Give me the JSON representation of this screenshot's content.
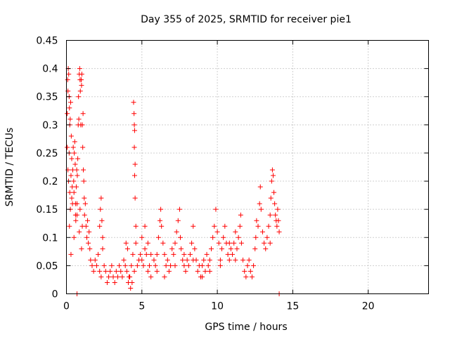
{
  "chart_data": {
    "type": "scatter",
    "title": "Day 355 of 2025, SRMTID for receiver pie1",
    "xlabel": "GPS time / hours",
    "ylabel": "SRMTID / TECUs",
    "xlim": [
      0,
      24
    ],
    "ylim": [
      0,
      0.45
    ],
    "x_ticks": [
      0,
      5,
      10,
      15,
      20
    ],
    "x_tick_labels": [
      "0",
      "5",
      "10",
      "15",
      "20"
    ],
    "y_ticks": [
      0,
      0.05,
      0.1,
      0.15,
      0.2,
      0.25,
      0.3,
      0.35,
      0.4,
      0.45
    ],
    "y_tick_labels": [
      "0",
      "0.05",
      "0.1",
      "0.15",
      "0.2",
      "0.25",
      "0.3",
      "0.35",
      "0.4",
      "0.45"
    ],
    "grid": true,
    "marker": "+",
    "color": "#ff0000",
    "series": [
      {
        "name": "SRMTID",
        "points": [
          [
            0.05,
            0.32
          ],
          [
            0.08,
            0.38
          ],
          [
            0.1,
            0.36
          ],
          [
            0.12,
            0.4
          ],
          [
            0.15,
            0.39
          ],
          [
            0.18,
            0.35
          ],
          [
            0.2,
            0.33
          ],
          [
            0.22,
            0.3
          ],
          [
            0.25,
            0.31
          ],
          [
            0.28,
            0.34
          ],
          [
            0.05,
            0.26
          ],
          [
            0.1,
            0.22
          ],
          [
            0.14,
            0.2
          ],
          [
            0.18,
            0.25
          ],
          [
            0.22,
            0.18
          ],
          [
            0.26,
            0.15
          ],
          [
            0.3,
            0.21
          ],
          [
            0.32,
            0.28
          ],
          [
            0.35,
            0.24
          ],
          [
            0.38,
            0.19
          ],
          [
            0.4,
            0.16
          ],
          [
            0.42,
            0.22
          ],
          [
            0.45,
            0.26
          ],
          [
            0.48,
            0.2
          ],
          [
            0.5,
            0.18
          ],
          [
            0.52,
            0.25
          ],
          [
            0.55,
            0.27
          ],
          [
            0.58,
            0.23
          ],
          [
            0.6,
            0.16
          ],
          [
            0.62,
            0.13
          ],
          [
            0.65,
            0.19
          ],
          [
            0.68,
            0.22
          ],
          [
            0.7,
            0.14
          ],
          [
            0.72,
            0.21
          ],
          [
            0.75,
            0.24
          ],
          [
            0.78,
            0.3
          ],
          [
            0.8,
            0.35
          ],
          [
            0.82,
            0.31
          ],
          [
            0.85,
            0.39
          ],
          [
            0.88,
            0.4
          ],
          [
            0.9,
            0.38
          ],
          [
            0.92,
            0.36
          ],
          [
            0.95,
            0.3
          ],
          [
            0.98,
            0.38
          ],
          [
            1.0,
            0.37
          ],
          [
            1.02,
            0.39
          ],
          [
            1.05,
            0.3
          ],
          [
            1.08,
            0.26
          ],
          [
            1.1,
            0.32
          ],
          [
            1.12,
            0.22
          ],
          [
            1.15,
            0.2
          ],
          [
            1.18,
            0.17
          ],
          [
            1.2,
            0.14
          ],
          [
            1.25,
            0.16
          ],
          [
            1.3,
            0.12
          ],
          [
            1.35,
            0.1
          ],
          [
            1.4,
            0.13
          ],
          [
            1.45,
            0.09
          ],
          [
            1.5,
            0.11
          ],
          [
            1.55,
            0.08
          ],
          [
            0.3,
            0.07
          ],
          [
            0.5,
            0.1
          ],
          [
            0.7,
            0.16
          ],
          [
            0.9,
            0.15
          ],
          [
            1.0,
            0.08
          ],
          [
            1.05,
            0.12
          ],
          [
            0.2,
            0.12
          ],
          [
            0.35,
            0.17
          ],
          [
            0.6,
            0.14
          ],
          [
            0.85,
            0.11
          ],
          [
            1.6,
            0.06
          ],
          [
            1.7,
            0.05
          ],
          [
            1.8,
            0.04
          ],
          [
            1.9,
            0.06
          ],
          [
            2.0,
            0.05
          ],
          [
            2.1,
            0.07
          ],
          [
            2.2,
            0.04
          ],
          [
            2.3,
            0.03
          ],
          [
            2.4,
            0.08
          ],
          [
            2.5,
            0.05
          ],
          [
            2.2,
            0.12
          ],
          [
            2.25,
            0.15
          ],
          [
            2.3,
            0.17
          ],
          [
            2.35,
            0.13
          ],
          [
            2.4,
            0.1
          ],
          [
            2.6,
            0.04
          ],
          [
            2.7,
            0.02
          ],
          [
            2.8,
            0.03
          ],
          [
            2.9,
            0.04
          ],
          [
            3.0,
            0.05
          ],
          [
            3.1,
            0.03
          ],
          [
            3.2,
            0.02
          ],
          [
            3.3,
            0.04
          ],
          [
            3.4,
            0.03
          ],
          [
            3.5,
            0.05
          ],
          [
            3.6,
            0.04
          ],
          [
            3.7,
            0.03
          ],
          [
            3.8,
            0.06
          ],
          [
            3.9,
            0.05
          ],
          [
            4.0,
            0.04
          ],
          [
            4.1,
            0.02
          ],
          [
            4.2,
            0.03
          ],
          [
            4.3,
            0.05
          ],
          [
            4.4,
            0.07
          ],
          [
            4.5,
            0.04
          ],
          [
            3.95,
            0.09
          ],
          [
            4.05,
            0.08
          ],
          [
            4.15,
            0.03
          ],
          [
            4.25,
            0.01
          ],
          [
            4.35,
            0.02
          ],
          [
            4.45,
            0.34
          ],
          [
            4.48,
            0.32
          ],
          [
            4.5,
            0.3
          ],
          [
            4.52,
            0.29
          ],
          [
            4.5,
            0.26
          ],
          [
            4.55,
            0.23
          ],
          [
            4.52,
            0.21
          ],
          [
            4.55,
            0.17
          ],
          [
            4.6,
            0.12
          ],
          [
            4.6,
            0.09
          ],
          [
            4.7,
            0.05
          ],
          [
            4.8,
            0.06
          ],
          [
            4.9,
            0.07
          ],
          [
            5.0,
            0.06
          ],
          [
            5.1,
            0.05
          ],
          [
            5.2,
            0.08
          ],
          [
            5.3,
            0.07
          ],
          [
            5.4,
            0.04
          ],
          [
            5.5,
            0.05
          ],
          [
            5.6,
            0.03
          ],
          [
            5.0,
            0.1
          ],
          [
            5.2,
            0.12
          ],
          [
            5.4,
            0.09
          ],
          [
            5.6,
            0.07
          ],
          [
            5.8,
            0.06
          ],
          [
            5.9,
            0.05
          ],
          [
            6.0,
            0.07
          ],
          [
            6.1,
            0.1
          ],
          [
            6.2,
            0.13
          ],
          [
            6.25,
            0.15
          ],
          [
            6.3,
            0.12
          ],
          [
            6.4,
            0.09
          ],
          [
            6.5,
            0.07
          ],
          [
            6.6,
            0.05
          ],
          [
            6.7,
            0.06
          ],
          [
            6.8,
            0.04
          ],
          [
            6.9,
            0.05
          ],
          [
            7.0,
            0.08
          ],
          [
            7.1,
            0.07
          ],
          [
            7.2,
            0.09
          ],
          [
            7.3,
            0.11
          ],
          [
            7.4,
            0.13
          ],
          [
            7.5,
            0.15
          ],
          [
            7.55,
            0.1
          ],
          [
            7.6,
            0.08
          ],
          [
            7.7,
            0.06
          ],
          [
            7.8,
            0.05
          ],
          [
            7.9,
            0.04
          ],
          [
            8.0,
            0.06
          ],
          [
            8.1,
            0.05
          ],
          [
            8.2,
            0.07
          ],
          [
            8.3,
            0.09
          ],
          [
            8.4,
            0.12
          ],
          [
            8.5,
            0.08
          ],
          [
            8.6,
            0.06
          ],
          [
            8.7,
            0.04
          ],
          [
            8.8,
            0.05
          ],
          [
            8.9,
            0.03
          ],
          [
            9.0,
            0.05
          ],
          [
            9.1,
            0.06
          ],
          [
            9.2,
            0.04
          ],
          [
            9.3,
            0.07
          ],
          [
            9.4,
            0.05
          ],
          [
            9.5,
            0.06
          ],
          [
            9.6,
            0.08
          ],
          [
            9.7,
            0.1
          ],
          [
            9.8,
            0.12
          ],
          [
            9.9,
            0.15
          ],
          [
            10.0,
            0.11
          ],
          [
            10.1,
            0.09
          ],
          [
            10.2,
            0.06
          ],
          [
            10.3,
            0.08
          ],
          [
            10.4,
            0.1
          ],
          [
            10.5,
            0.12
          ],
          [
            10.6,
            0.09
          ],
          [
            10.7,
            0.07
          ],
          [
            10.8,
            0.06
          ],
          [
            10.9,
            0.08
          ],
          [
            11.0,
            0.07
          ],
          [
            11.1,
            0.09
          ],
          [
            11.2,
            0.06
          ],
          [
            11.3,
            0.08
          ],
          [
            11.4,
            0.1
          ],
          [
            11.5,
            0.12
          ],
          [
            11.55,
            0.14
          ],
          [
            11.6,
            0.09
          ],
          [
            11.7,
            0.06
          ],
          [
            11.8,
            0.04
          ],
          [
            11.9,
            0.03
          ],
          [
            12.0,
            0.05
          ],
          [
            12.1,
            0.06
          ],
          [
            12.2,
            0.04
          ],
          [
            12.3,
            0.03
          ],
          [
            12.4,
            0.05
          ],
          [
            12.5,
            0.08
          ],
          [
            12.55,
            0.1
          ],
          [
            12.6,
            0.13
          ],
          [
            12.7,
            0.12
          ],
          [
            12.8,
            0.16
          ],
          [
            12.85,
            0.19
          ],
          [
            12.9,
            0.15
          ],
          [
            13.0,
            0.11
          ],
          [
            13.1,
            0.09
          ],
          [
            13.2,
            0.08
          ],
          [
            13.3,
            0.1
          ],
          [
            13.4,
            0.12
          ],
          [
            13.5,
            0.14
          ],
          [
            13.55,
            0.17
          ],
          [
            13.6,
            0.2
          ],
          [
            13.65,
            0.22
          ],
          [
            13.7,
            0.21
          ],
          [
            13.75,
            0.18
          ],
          [
            13.8,
            0.16
          ],
          [
            13.85,
            0.14
          ],
          [
            13.9,
            0.13
          ],
          [
            13.95,
            0.12
          ],
          [
            14.0,
            0.15
          ],
          [
            14.05,
            0.13
          ],
          [
            14.1,
            0.11
          ],
          [
            13.5,
            0.09
          ],
          [
            6.0,
            0.04
          ],
          [
            6.5,
            0.03
          ],
          [
            7.2,
            0.05
          ],
          [
            7.8,
            0.07
          ],
          [
            8.4,
            0.06
          ],
          [
            9.0,
            0.03
          ],
          [
            9.5,
            0.04
          ],
          [
            10.2,
            0.05
          ],
          [
            10.8,
            0.09
          ],
          [
            11.2,
            0.11
          ],
          [
            0.7,
            0.0
          ],
          [
            14.1,
            0.0
          ]
        ]
      }
    ]
  }
}
